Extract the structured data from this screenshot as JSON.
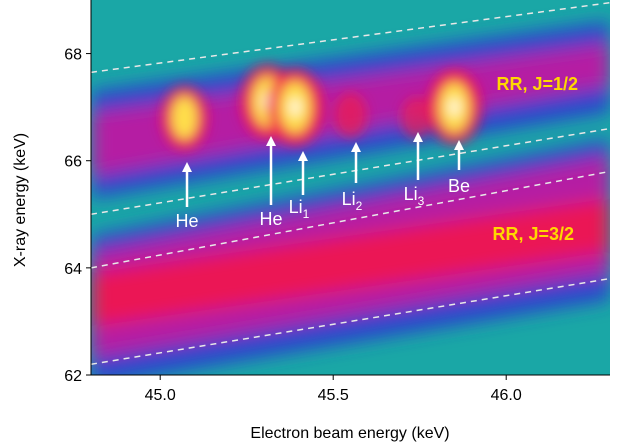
{
  "chart_data": {
    "type": "heatmap",
    "xlabel": "Electron beam energy (keV)",
    "ylabel": "X-ray energy (keV)",
    "xlim": [
      44.8,
      46.3
    ],
    "ylim": [
      62.0,
      69.0
    ],
    "x_ticks": [
      {
        "value": 45.0,
        "label": "45.0"
      },
      {
        "value": 45.5,
        "label": "45.5"
      },
      {
        "value": 46.0,
        "label": "46.0"
      }
    ],
    "y_ticks": [
      {
        "value": 62,
        "label": "62"
      },
      {
        "value": 64,
        "label": "64"
      },
      {
        "value": 66,
        "label": "66"
      },
      {
        "value": 68,
        "label": "68"
      }
    ],
    "grid": false,
    "colormap": "fire (blue-green → blue → magenta → red → yellow → white)",
    "region_labels": [
      {
        "text": "RR, J=1/2",
        "color": "#ffd800"
      },
      {
        "text": "RR, J=3/2",
        "color": "#ffd800"
      }
    ],
    "resonances": [
      {
        "label": "He",
        "sub": "",
        "x": 45.07,
        "y": 66.8,
        "intensity": 0.75
      },
      {
        "label": "He",
        "sub": "",
        "x": 45.31,
        "y": 67.1,
        "intensity": 0.95
      },
      {
        "label": "Li",
        "sub": "1",
        "x": 45.39,
        "y": 67.0,
        "intensity": 1.0
      },
      {
        "label": "Li",
        "sub": "2",
        "x": 45.55,
        "y": 66.85,
        "intensity": 0.35
      },
      {
        "label": "Li",
        "sub": "3",
        "x": 45.74,
        "y": 66.8,
        "intensity": 0.3
      },
      {
        "label": "Be",
        "sub": "",
        "x": 45.85,
        "y": 67.0,
        "intensity": 0.95
      }
    ],
    "dashed_boundaries_y_at_x_min_and_x_max": [
      [
        67.65,
        68.95
      ],
      [
        65.0,
        66.6
      ],
      [
        64.0,
        65.8
      ],
      [
        62.2,
        63.8
      ]
    ]
  },
  "colors": {
    "background": "#1aa7a6",
    "band_blue": "#2b3bd0",
    "band_magenta": "#c5189f",
    "band_red": "#f11a4b",
    "peak_yellow": "#ffe94a",
    "annotation": "#ffffff",
    "region_label": "#ffd800"
  }
}
